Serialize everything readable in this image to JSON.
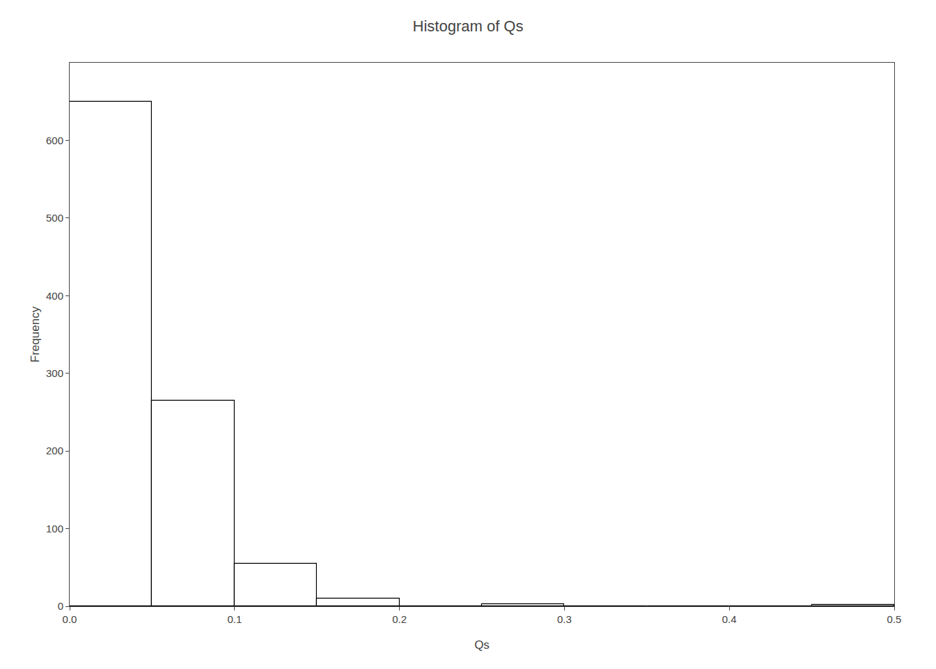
{
  "chart_data": {
    "type": "histogram",
    "title": "Histogram of Qs",
    "xlabel": "Qs",
    "ylabel": "Frequency",
    "bins": [
      0.0,
      0.05,
      0.1,
      0.15,
      0.2,
      0.25,
      0.3,
      0.35,
      0.4,
      0.45,
      0.5
    ],
    "values": [
      650,
      265,
      55,
      10,
      0,
      3,
      0,
      0,
      0,
      2
    ],
    "color": "#ffffff",
    "xlim": [
      0.0,
      0.5
    ],
    "xticks": [
      {
        "value": 0.0,
        "label": "0.0"
      },
      0.1,
      0.2,
      0.3,
      0.4,
      0.5
    ],
    "ylim": [
      0,
      700
    ],
    "yticks": [
      0,
      100,
      200,
      300,
      400,
      500,
      600
    ],
    "grid": false
  }
}
